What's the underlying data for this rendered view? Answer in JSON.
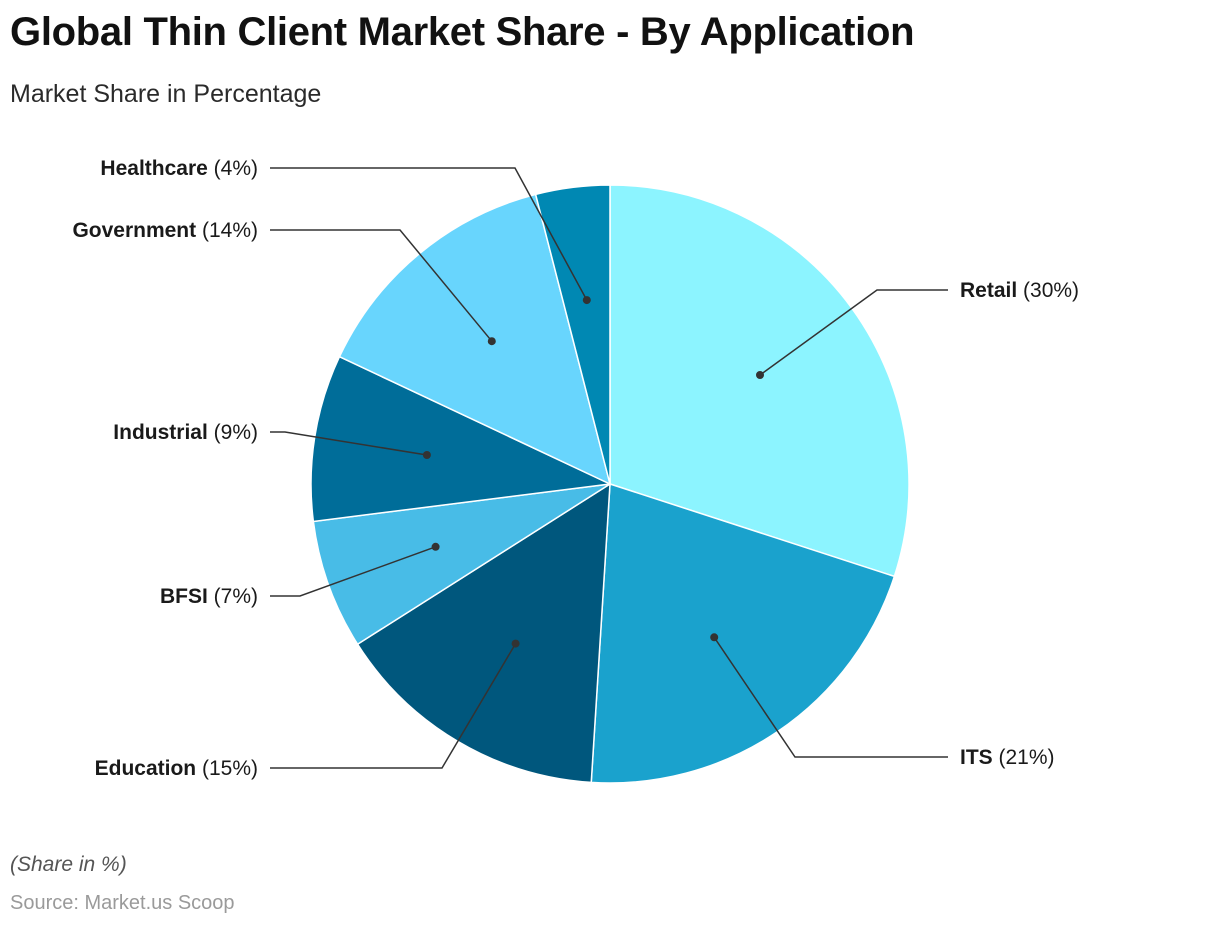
{
  "title": "Global Thin Client Market Share - By Application",
  "subtitle": "Market Share in Percentage",
  "note": "(Share in %)",
  "source": "Source: Market.us Scoop",
  "chart_data": {
    "type": "pie",
    "categories": [
      "Retail",
      "ITS",
      "Education",
      "BFSI",
      "Industrial",
      "Government",
      "Healthcare"
    ],
    "values": [
      30,
      21,
      15,
      7,
      9,
      14,
      4
    ],
    "value_format": "({v}%)",
    "colors": [
      "#8cf4ff",
      "#1aa2cd",
      "#00577d",
      "#48bce7",
      "#006d99",
      "#68d5fd",
      "#0088b3"
    ],
    "start": "12 o'clock",
    "direction": "clockwise",
    "legend": "none"
  }
}
